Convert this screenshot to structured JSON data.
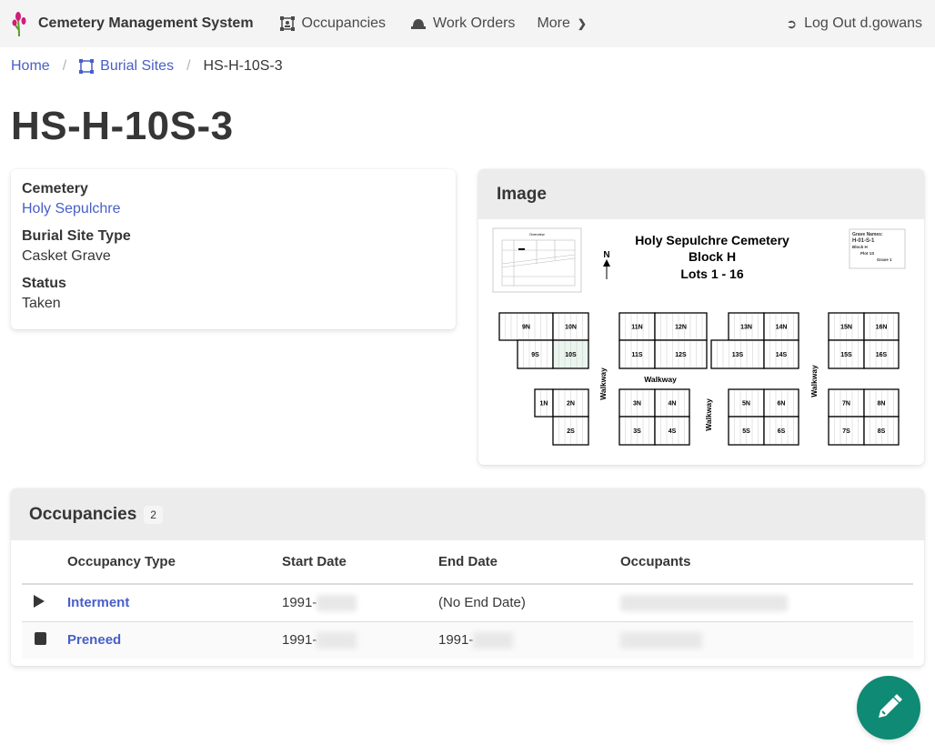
{
  "nav": {
    "brand": "Cemetery Management System",
    "occupancies": "Occupancies",
    "work_orders": "Work Orders",
    "more": "More",
    "logout": "Log Out d.gowans"
  },
  "breadcrumb": {
    "home": "Home",
    "burial_sites": "Burial Sites",
    "current": "HS-H-10S-3"
  },
  "page_title": "HS-H-10S-3",
  "details": {
    "cemetery_label": "Cemetery",
    "cemetery_value": "Holy Sepulchre",
    "type_label": "Burial Site Type",
    "type_value": "Casket Grave",
    "status_label": "Status",
    "status_value": "Taken"
  },
  "image_panel": {
    "title": "Image",
    "map": {
      "title1": "Holy Sepulchre Cemetery",
      "title2": "Block H",
      "title3": "Lots 1 - 16",
      "north": "N",
      "overview": "Overview",
      "legend": [
        "Grave Names:",
        "H-01-S-1",
        "Block H",
        "Plot 1S",
        "Grave 1"
      ],
      "walkway": "Walkway",
      "lots": [
        "9N",
        "10N",
        "9S",
        "10S",
        "11N",
        "12N",
        "11S",
        "12S",
        "13N",
        "14N",
        "13S",
        "14S",
        "15N",
        "16N",
        "15S",
        "16S",
        "1N",
        "2N",
        "2S",
        "3N",
        "4N",
        "3S",
        "4S",
        "5N",
        "6N",
        "5S",
        "6S",
        "7N",
        "8N",
        "7S",
        "8S"
      ],
      "highlighted_lot": "10S",
      "highlight_color": "#eaf5ee"
    }
  },
  "occupancies": {
    "title": "Occupancies",
    "count": "2",
    "headers": [
      "Occupancy Type",
      "Start Date",
      "End Date",
      "Occupants"
    ],
    "rows": [
      {
        "icon": "play-icon",
        "type": "Interment",
        "start": "1991-",
        "end": "(No End Date)"
      },
      {
        "icon": "stop-icon",
        "type": "Preneed",
        "start": "1991-",
        "end": "1991-"
      }
    ]
  },
  "colors": {
    "accent": "#485fc7",
    "fab": "#0f8a74"
  }
}
